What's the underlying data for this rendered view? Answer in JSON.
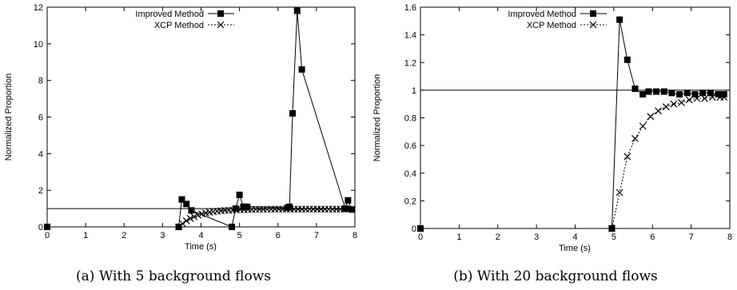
{
  "chart_data": [
    {
      "type": "line",
      "caption": "(a) With 5 background flows",
      "xlabel": "Time (s)",
      "ylabel": "Normalized Proportion",
      "xlim": [
        0,
        8
      ],
      "ylim": [
        0,
        12
      ],
      "xticks": [
        "0",
        "1",
        "2",
        "3",
        "4",
        "5",
        "6",
        "7",
        "8"
      ],
      "yticks": [
        "0",
        "2",
        "4",
        "6",
        "8",
        "10",
        "12"
      ],
      "reference_line": 1,
      "legend_position": "top-left",
      "series": [
        {
          "name": "Improved Method",
          "marker": "filled-square",
          "line_style": "solid",
          "points": [
            [
              0,
              0
            ],
            [
              3.42,
              0
            ],
            [
              3.5,
              1.5
            ],
            [
              3.62,
              1.25
            ],
            [
              3.75,
              0.9
            ],
            [
              4.8,
              0
            ],
            [
              4.9,
              1.0
            ],
            [
              5.0,
              1.75
            ],
            [
              5.1,
              1.1
            ],
            [
              5.2,
              1.1
            ],
            [
              6.25,
              1.05
            ],
            [
              6.3,
              1.1
            ],
            [
              6.38,
              6.2
            ],
            [
              6.5,
              11.8
            ],
            [
              6.62,
              8.6
            ],
            [
              7.75,
              1.0
            ],
            [
              7.82,
              1.45
            ],
            [
              7.92,
              0.95
            ]
          ]
        },
        {
          "name": "XCP Method",
          "marker": "x",
          "line_style": "dotted",
          "points": [
            [
              0,
              0
            ],
            [
              3.42,
              0
            ],
            [
              3.52,
              0.18
            ],
            [
              3.62,
              0.33
            ],
            [
              3.72,
              0.46
            ],
            [
              3.82,
              0.56
            ],
            [
              3.92,
              0.64
            ],
            [
              4.02,
              0.71
            ],
            [
              4.12,
              0.76
            ],
            [
              4.22,
              0.8
            ],
            [
              4.32,
              0.83
            ],
            [
              4.42,
              0.86
            ],
            [
              4.52,
              0.88
            ],
            [
              4.62,
              0.9
            ],
            [
              4.72,
              0.91
            ],
            [
              4.82,
              0.92
            ],
            [
              4.92,
              0.93
            ],
            [
              5.02,
              0.94
            ],
            [
              5.12,
              0.94
            ],
            [
              5.22,
              0.95
            ],
            [
              5.32,
              0.95
            ],
            [
              5.42,
              0.96
            ],
            [
              5.52,
              0.96
            ],
            [
              5.62,
              0.96
            ],
            [
              5.72,
              0.96
            ],
            [
              5.82,
              0.97
            ],
            [
              5.92,
              0.97
            ],
            [
              6.02,
              0.97
            ],
            [
              6.12,
              0.97
            ],
            [
              6.22,
              0.97
            ],
            [
              6.32,
              0.97
            ],
            [
              6.42,
              0.97
            ],
            [
              6.52,
              0.97
            ],
            [
              6.62,
              0.97
            ],
            [
              6.72,
              0.97
            ],
            [
              6.82,
              0.97
            ],
            [
              6.92,
              0.97
            ],
            [
              7.02,
              0.97
            ],
            [
              7.12,
              0.97
            ],
            [
              7.22,
              0.97
            ],
            [
              7.32,
              0.97
            ],
            [
              7.42,
              0.97
            ],
            [
              7.52,
              0.97
            ],
            [
              7.62,
              0.97
            ],
            [
              7.72,
              0.97
            ],
            [
              7.82,
              0.97
            ],
            [
              7.92,
              0.97
            ]
          ]
        }
      ]
    },
    {
      "type": "line",
      "caption": "(b) With 20 background flows",
      "xlabel": "Time (s)",
      "ylabel": "Normalized Proportion",
      "xlim": [
        0,
        8
      ],
      "ylim": [
        0,
        1.6
      ],
      "xticks": [
        "0",
        "1",
        "2",
        "3",
        "4",
        "5",
        "6",
        "7",
        "8"
      ],
      "yticks": [
        "0",
        "0.2",
        "0.4",
        "0.6",
        "0.8",
        "1",
        "1.2",
        "1.4",
        "1.6"
      ],
      "reference_line": 1,
      "legend_position": "top-right",
      "series": [
        {
          "name": "Improved Method",
          "marker": "filled-square",
          "line_style": "solid",
          "points": [
            [
              0,
              0
            ],
            [
              4.95,
              0
            ],
            [
              5.15,
              1.51
            ],
            [
              5.35,
              1.22
            ],
            [
              5.55,
              1.01
            ],
            [
              5.75,
              0.97
            ],
            [
              5.9,
              0.99
            ],
            [
              6.1,
              0.99
            ],
            [
              6.3,
              0.99
            ],
            [
              6.5,
              0.98
            ],
            [
              6.7,
              0.97
            ],
            [
              6.9,
              0.98
            ],
            [
              7.1,
              0.97
            ],
            [
              7.3,
              0.98
            ],
            [
              7.5,
              0.98
            ],
            [
              7.7,
              0.97
            ],
            [
              7.85,
              0.97
            ]
          ]
        },
        {
          "name": "XCP Method",
          "marker": "x",
          "line_style": "dotted",
          "points": [
            [
              0,
              0
            ],
            [
              4.95,
              0
            ],
            [
              5.15,
              0.26
            ],
            [
              5.35,
              0.52
            ],
            [
              5.55,
              0.65
            ],
            [
              5.75,
              0.74
            ],
            [
              5.95,
              0.81
            ],
            [
              6.15,
              0.85
            ],
            [
              6.35,
              0.88
            ],
            [
              6.55,
              0.9
            ],
            [
              6.75,
              0.91
            ],
            [
              6.95,
              0.93
            ],
            [
              7.15,
              0.94
            ],
            [
              7.35,
              0.94
            ],
            [
              7.55,
              0.95
            ],
            [
              7.75,
              0.95
            ],
            [
              7.85,
              0.95
            ]
          ]
        }
      ]
    }
  ]
}
